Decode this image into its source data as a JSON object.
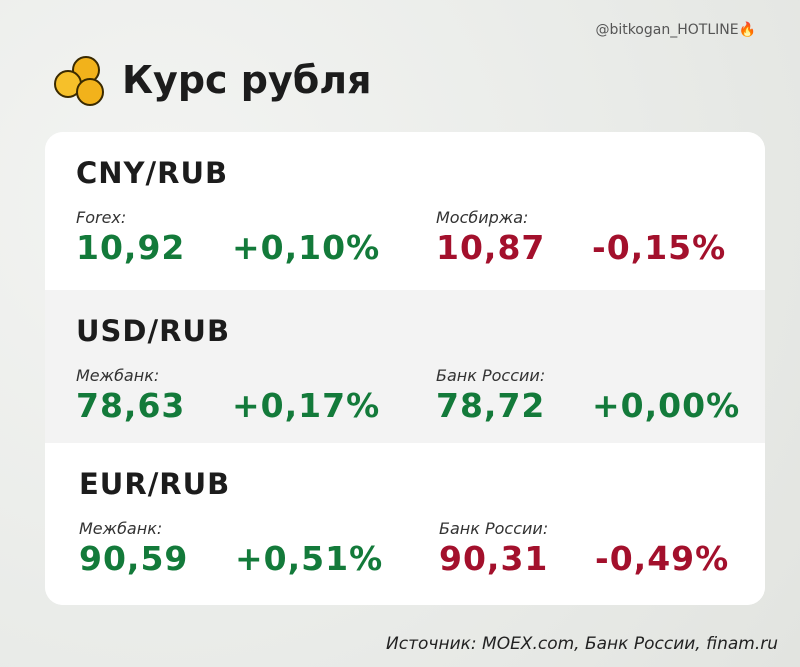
{
  "header": {
    "handle": "@bitkogan_HOTLINE🔥",
    "title": "Курс рубля"
  },
  "rows": [
    {
      "pair": "CNY/RUB",
      "quotes": [
        {
          "source": "Forex:",
          "rate": "10,92",
          "change": "+0,10%",
          "color": "#137a3a"
        },
        {
          "source": "Мосбиржа:",
          "rate": "10,87",
          "change": "-0,15%",
          "color": "#a3102c"
        }
      ]
    },
    {
      "pair": "USD/RUB",
      "quotes": [
        {
          "source": "Межбанк:",
          "rate": "78,63",
          "change": "+0,17%",
          "color": "#137a3a"
        },
        {
          "source": "Банк России:",
          "rate": "78,72",
          "change": "+0,00%",
          "color": "#137a3a"
        }
      ]
    },
    {
      "pair": "EUR/RUB",
      "quotes": [
        {
          "source": "Межбанк:",
          "rate": "90,59",
          "change": "+0,51%",
          "color": "#137a3a"
        },
        {
          "source": "Банк России:",
          "rate": "90,31",
          "change": "-0,49%",
          "color": "#a3102c"
        }
      ]
    }
  ],
  "footer": {
    "source": "Источник: MOEX.com, Банк России, finam.ru"
  }
}
